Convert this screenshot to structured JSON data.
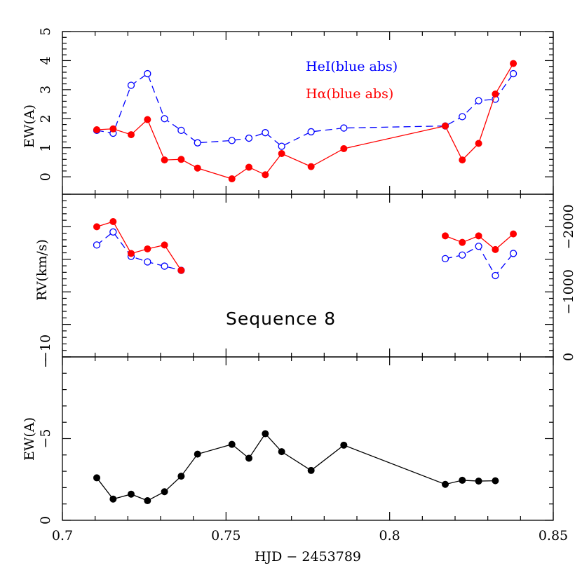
{
  "colors": {
    "hei": "#0000ff",
    "halpha": "#ff0000",
    "neutral": "#000000"
  },
  "xlabel": "HJD − 2453789",
  "xaxis": {
    "min": 0.7,
    "max": 0.85,
    "ticks": [
      "0.7",
      "0.75",
      "0.8",
      "0.85"
    ]
  },
  "annotation": "Sequence 8",
  "legend": {
    "hei": "HeI(blue abs)",
    "halpha_symbol": "Hα",
    "halpha_rest": "(blue abs)"
  },
  "chart_data": [
    {
      "type": "line",
      "panel": "top",
      "ylabel": "EW(A)",
      "ylim": [
        -0.6,
        5
      ],
      "yticks": [
        "0",
        "1",
        "2",
        "3",
        "4",
        "5"
      ],
      "series": [
        {
          "name": "HeI(blue abs)",
          "style": "dashed-open-circle",
          "x": [
            0.7105,
            0.7155,
            0.721,
            0.726,
            0.7312,
            0.7363,
            0.7413,
            0.7518,
            0.757,
            0.762,
            0.767,
            0.776,
            0.786,
            0.817,
            0.8222,
            0.8272,
            0.8323,
            0.8378
          ],
          "y": [
            1.6,
            1.5,
            3.15,
            3.55,
            2.0,
            1.6,
            1.17,
            1.25,
            1.33,
            1.52,
            1.05,
            1.55,
            1.68,
            1.75,
            2.07,
            2.62,
            2.67,
            3.55
          ]
        },
        {
          "name": "Hα(blue abs)",
          "style": "solid-filled-circle",
          "x": [
            0.7105,
            0.7155,
            0.721,
            0.726,
            0.7312,
            0.7363,
            0.7413,
            0.7518,
            0.757,
            0.762,
            0.767,
            0.776,
            0.786,
            0.817,
            0.8222,
            0.8272,
            0.8323,
            0.8378
          ],
          "y": [
            1.62,
            1.65,
            1.45,
            1.97,
            0.58,
            0.6,
            0.3,
            -0.07,
            0.33,
            0.07,
            0.8,
            0.35,
            0.97,
            1.75,
            0.58,
            1.15,
            2.85,
            3.9
          ]
        }
      ]
    },
    {
      "type": "line",
      "panel": "middle",
      "ylabel": "RV(km/s)",
      "ylim": [
        0,
        -2500
      ],
      "yticks_right": [
        "0",
        "−1000",
        "−2000"
      ],
      "yticks_left_visible": [
        "−10"
      ],
      "series": [
        {
          "name": "HeI(blue abs)",
          "style": "dashed-open-circle",
          "segments": [
            {
              "x": [
                0.7105,
                0.7155,
                0.721,
                0.726,
                0.7312,
                0.7363
              ],
              "y": [
                -1720,
                -1920,
                -1545,
                -1460,
                -1395,
                -1330
              ]
            },
            {
              "x": [
                0.817,
                0.8222,
                0.8272,
                0.8323,
                0.8378
              ],
              "y": [
                -1510,
                -1565,
                -1700,
                -1250,
                -1590
              ]
            }
          ]
        },
        {
          "name": "Hα(blue abs)",
          "style": "solid-filled-circle",
          "segments": [
            {
              "x": [
                0.7105,
                0.7155,
                0.721,
                0.726,
                0.7312,
                0.7363
              ],
              "y": [
                -2000,
                -2080,
                -1590,
                -1660,
                -1720,
                -1330
              ]
            },
            {
              "x": [
                0.817,
                0.8222,
                0.8272,
                0.8323,
                0.8378
              ],
              "y": [
                -1860,
                -1760,
                -1860,
                -1650,
                -1890
              ]
            }
          ]
        }
      ]
    },
    {
      "type": "line",
      "panel": "bottom",
      "ylabel": "EW(A)",
      "ylim": [
        0,
        -10
      ],
      "yticks": [
        "0",
        "−5"
      ],
      "series": [
        {
          "style": "solid-filled-circle",
          "x": [
            0.7105,
            0.7155,
            0.721,
            0.726,
            0.7312,
            0.7363,
            0.7413,
            0.7518,
            0.757,
            0.762,
            0.767,
            0.776,
            0.786,
            0.817,
            0.8222,
            0.8272,
            0.8323
          ],
          "y": [
            -2.6,
            -1.3,
            -1.6,
            -1.2,
            -1.75,
            -2.7,
            -4.05,
            -4.65,
            -3.8,
            -5.3,
            -4.2,
            -3.05,
            -4.6,
            -2.2,
            -2.45,
            -2.4,
            -2.42
          ]
        }
      ]
    }
  ]
}
